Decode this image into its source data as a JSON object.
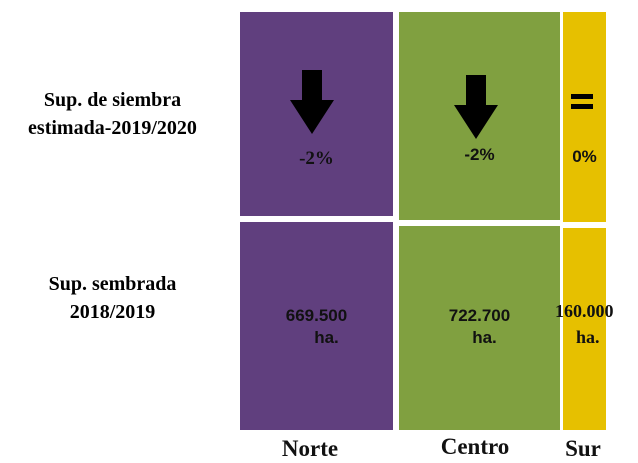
{
  "row_labels": [
    [
      "Sup. de siembra",
      "estimada-2019/2020"
    ],
    [
      "Sup. sembrada",
      "2018/2019"
    ]
  ],
  "columns": [
    {
      "name": "Norte",
      "change": "-2%",
      "area": [
        "669.500",
        "ha."
      ]
    },
    {
      "name": "Centro",
      "change": "-2%",
      "area": [
        "722.700",
        "ha."
      ]
    },
    {
      "name": "Sur",
      "change": "0%",
      "area": [
        "160.000",
        "ha."
      ]
    }
  ]
}
